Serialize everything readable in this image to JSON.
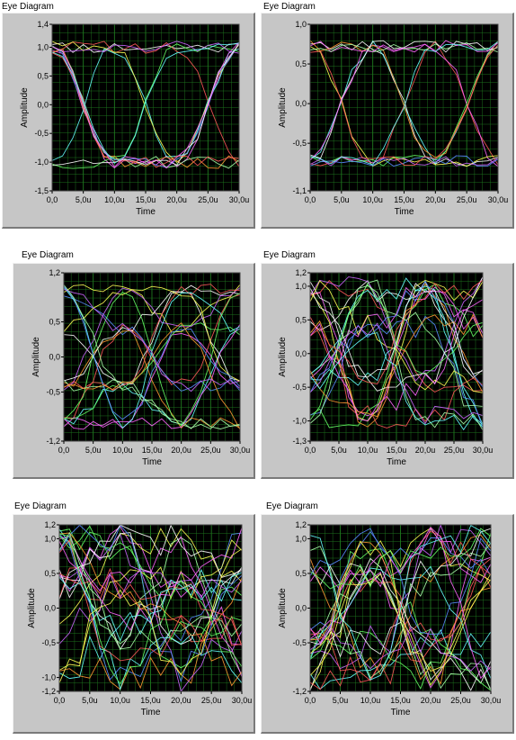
{
  "chart_data": [
    {
      "type": "line",
      "title": "Eye Diagram",
      "xlabel": "Time",
      "ylabel": "Amplitude",
      "xlim": [
        0,
        30
      ],
      "ylim": [
        -1.5,
        1.4
      ],
      "xticks": [
        "0,0",
        "5,0u",
        "10,0u",
        "15,0u",
        "20,0u",
        "25,0u",
        "30,0u"
      ],
      "yticks": [
        {
          "v": 1.4,
          "label": "1,4"
        },
        {
          "v": 1.0,
          "label": "1,0"
        },
        {
          "v": 0.5,
          "label": "0,5"
        },
        {
          "v": 0.0,
          "label": "0,0"
        },
        {
          "v": -0.5,
          "label": "-0,5"
        },
        {
          "v": -1.0,
          "label": "-1,0"
        },
        {
          "v": -1.5,
          "label": "-1,5"
        }
      ],
      "grid": true,
      "levels": [
        1.0,
        -1.0
      ],
      "noise": 0.22,
      "traces": 14,
      "seed": 11
    },
    {
      "type": "line",
      "title": "Eye Diagram",
      "xlabel": "Time",
      "ylabel": "Amplitude",
      "xlim": [
        0,
        30
      ],
      "ylim": [
        -1.1,
        1.0
      ],
      "xticks": [
        "0,0",
        "5,0u",
        "10,0u",
        "15,0u",
        "20,0u",
        "25,0u",
        "30,0u"
      ],
      "yticks": [
        {
          "v": 1.0,
          "label": "1,0"
        },
        {
          "v": 0.5,
          "label": "0,5"
        },
        {
          "v": 0.0,
          "label": "0,0"
        },
        {
          "v": -0.5,
          "label": "-0,5"
        },
        {
          "v": -1.1,
          "label": "-1,1"
        }
      ],
      "grid": true,
      "levels": [
        0.72,
        -0.72
      ],
      "noise": 0.15,
      "traces": 14,
      "seed": 23
    },
    {
      "type": "line",
      "title": "Eye Diagram",
      "xlabel": "Time",
      "ylabel": "Amplitude",
      "xlim": [
        0,
        30
      ],
      "ylim": [
        -1.2,
        1.2
      ],
      "xticks": [
        "0,0",
        "5,0u",
        "10,0u",
        "15,0u",
        "20,0u",
        "25,0u",
        "30,0u"
      ],
      "yticks": [
        {
          "v": 1.2,
          "label": "1,2"
        },
        {
          "v": 0.5,
          "label": "0,5"
        },
        {
          "v": 0.0,
          "label": "0,0"
        },
        {
          "v": -0.5,
          "label": "-0,5"
        },
        {
          "v": -1.2,
          "label": "-1,2"
        }
      ],
      "grid": true,
      "levels": [
        0.95,
        0.4,
        -0.4,
        -0.95
      ],
      "noise": 0.18,
      "traces": 20,
      "seed": 37
    },
    {
      "type": "line",
      "title": "Eye Diagram",
      "xlabel": "Time",
      "ylabel": "Amplitude",
      "xlim": [
        0,
        30
      ],
      "ylim": [
        -1.3,
        1.2
      ],
      "xticks": [
        "0,0",
        "5,0u",
        "10,0u",
        "15,0u",
        "20,0u",
        "25,0u",
        "30,0u"
      ],
      "yticks": [
        {
          "v": 1.2,
          "label": "1,2"
        },
        {
          "v": 1.0,
          "label": "1,0"
        },
        {
          "v": 0.5,
          "label": "0,5"
        },
        {
          "v": 0.0,
          "label": "0,0"
        },
        {
          "v": -0.5,
          "label": "-0,5"
        },
        {
          "v": -1.0,
          "label": "-1,0"
        },
        {
          "v": -1.3,
          "label": "-1,3"
        }
      ],
      "grid": true,
      "levels": [
        0.95,
        0.4,
        -0.4,
        -0.95
      ],
      "noise": 0.38,
      "traces": 24,
      "seed": 53
    },
    {
      "type": "line",
      "title": "Eye Diagram",
      "xlabel": "Time",
      "ylabel": "Amplitude",
      "xlim": [
        0,
        30
      ],
      "ylim": [
        -1.2,
        1.2
      ],
      "xticks": [
        "0,0",
        "5,0u",
        "10,0u",
        "15,0u",
        "20,0u",
        "25,0u",
        "30,0u"
      ],
      "yticks": [
        {
          "v": 1.2,
          "label": "1,2"
        },
        {
          "v": 1.0,
          "label": "1,0"
        },
        {
          "v": 0.5,
          "label": "0,5"
        },
        {
          "v": 0.0,
          "label": "0,0"
        },
        {
          "v": -0.5,
          "label": "-0,5"
        },
        {
          "v": -1.0,
          "label": "-1,0"
        },
        {
          "v": -1.2,
          "label": "-1,2"
        }
      ],
      "grid": true,
      "levels": [
        0.95,
        0.35,
        -0.35,
        -0.95
      ],
      "noise": 0.5,
      "traces": 26,
      "seed": 71
    },
    {
      "type": "line",
      "title": "Eye Diagram",
      "xlabel": "Time",
      "ylabel": "Amplitude",
      "xlim": [
        0,
        30
      ],
      "ylim": [
        -1.2,
        1.2
      ],
      "xticks": [
        "0,0",
        "5,0u",
        "10,0u",
        "15,0u",
        "20,0u",
        "25,0u",
        "30,0u"
      ],
      "yticks": [
        {
          "v": 1.2,
          "label": "1,2"
        },
        {
          "v": 1.0,
          "label": "1,0"
        },
        {
          "v": 0.5,
          "label": "0,5"
        },
        {
          "v": 0.0,
          "label": "0,0"
        },
        {
          "v": -0.5,
          "label": "-0,5"
        },
        {
          "v": -1.2,
          "label": "-1,2"
        }
      ],
      "grid": true,
      "levels": [
        0.95,
        0.5,
        -0.5,
        -0.95
      ],
      "noise": 0.5,
      "traces": 26,
      "seed": 89
    }
  ],
  "colors": {
    "plot_bg": "#000000",
    "grid": "#1f7a1f",
    "panel_bg": "#c6c6c6",
    "traces": [
      "#ffffff",
      "#ff5a5a",
      "#ff66ff",
      "#66ffff",
      "#ffff55",
      "#66ff66",
      "#5a8cff",
      "#ff9933",
      "#cc66ff",
      "#aaffaa"
    ]
  }
}
